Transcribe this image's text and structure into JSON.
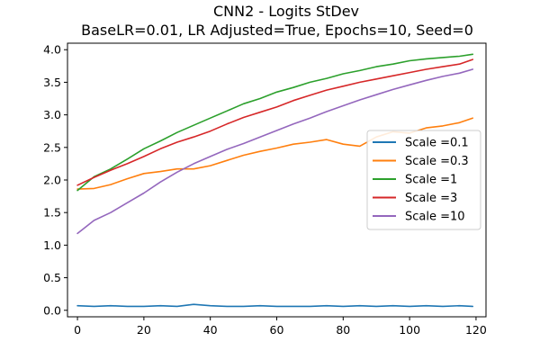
{
  "chart_data": {
    "type": "line",
    "title": "CNN2 - Logits StDev",
    "subtitle": "BaseLR=0.01, LR Adjusted=True, Epochs=10, Seed=0",
    "xlabel": "",
    "ylabel": "",
    "xlim": [
      -3,
      123
    ],
    "ylim": [
      -0.1,
      4.1
    ],
    "x_ticks": [
      0,
      20,
      40,
      60,
      80,
      100,
      120
    ],
    "y_ticks": [
      0.0,
      0.5,
      1.0,
      1.5,
      2.0,
      2.5,
      3.0,
      3.5,
      4.0
    ],
    "x_tick_labels": [
      "0",
      "20",
      "40",
      "60",
      "80",
      "100",
      "120"
    ],
    "y_tick_labels": [
      "0.0",
      "0.5",
      "1.0",
      "1.5",
      "2.0",
      "2.5",
      "3.0",
      "3.5",
      "4.0"
    ],
    "grid": false,
    "legend_position": "center-right",
    "x": [
      0,
      5,
      10,
      15,
      20,
      25,
      30,
      35,
      40,
      45,
      50,
      55,
      60,
      65,
      70,
      75,
      80,
      85,
      90,
      95,
      100,
      105,
      110,
      115,
      119
    ],
    "series": [
      {
        "name": "Scale =0.1",
        "color": "#1f77b4",
        "values": [
          0.07,
          0.06,
          0.07,
          0.06,
          0.06,
          0.07,
          0.06,
          0.09,
          0.07,
          0.06,
          0.06,
          0.07,
          0.06,
          0.06,
          0.06,
          0.07,
          0.06,
          0.07,
          0.06,
          0.07,
          0.06,
          0.07,
          0.06,
          0.07,
          0.06
        ]
      },
      {
        "name": "Scale =0.3",
        "color": "#ff7f0e",
        "values": [
          1.86,
          1.87,
          1.93,
          2.02,
          2.1,
          2.13,
          2.17,
          2.17,
          2.22,
          2.3,
          2.38,
          2.44,
          2.49,
          2.55,
          2.58,
          2.62,
          2.55,
          2.52,
          2.66,
          2.74,
          2.72,
          2.8,
          2.83,
          2.88,
          2.95
        ]
      },
      {
        "name": "Scale =1",
        "color": "#2ca02c",
        "values": [
          1.84,
          2.05,
          2.17,
          2.32,
          2.48,
          2.6,
          2.73,
          2.84,
          2.95,
          3.06,
          3.17,
          3.25,
          3.35,
          3.42,
          3.5,
          3.56,
          3.63,
          3.68,
          3.74,
          3.78,
          3.83,
          3.86,
          3.88,
          3.9,
          3.93
        ]
      },
      {
        "name": "Scale =3",
        "color": "#d62728",
        "values": [
          1.92,
          2.04,
          2.15,
          2.25,
          2.36,
          2.48,
          2.58,
          2.66,
          2.75,
          2.86,
          2.96,
          3.04,
          3.12,
          3.22,
          3.3,
          3.38,
          3.44,
          3.5,
          3.55,
          3.6,
          3.65,
          3.7,
          3.74,
          3.78,
          3.85
        ]
      },
      {
        "name": "Scale =10",
        "color": "#9467bd",
        "values": [
          1.18,
          1.38,
          1.5,
          1.65,
          1.8,
          1.97,
          2.12,
          2.25,
          2.36,
          2.47,
          2.56,
          2.66,
          2.76,
          2.86,
          2.95,
          3.05,
          3.14,
          3.23,
          3.31,
          3.39,
          3.46,
          3.53,
          3.59,
          3.64,
          3.7
        ]
      }
    ]
  }
}
